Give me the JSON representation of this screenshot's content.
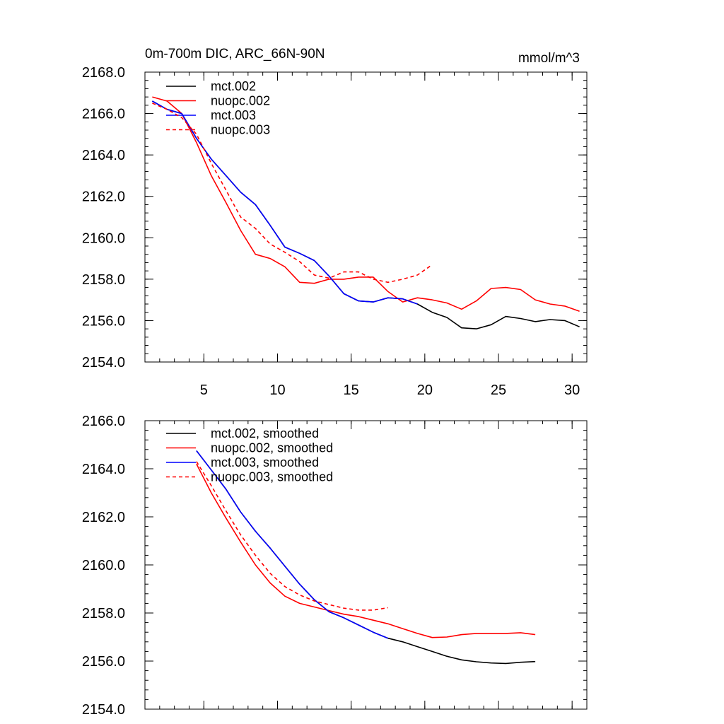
{
  "chart_data": [
    {
      "type": "line",
      "title": "0m-700m DIC, ARC_66N-90N",
      "units": "mmol/m^3",
      "xlabel": "",
      "ylabel": "",
      "xlim": [
        1,
        31
      ],
      "ylim": [
        2154.0,
        2168.0
      ],
      "xticks": [
        5,
        10,
        15,
        20,
        25,
        30
      ],
      "yticks": [
        "2154.0",
        "2156.0",
        "2158.0",
        "2160.0",
        "2162.0",
        "2164.0",
        "2166.0",
        "2168.0"
      ],
      "legend_position": "top-left",
      "series": [
        {
          "name": "mct.002",
          "color": "#000000",
          "dash": "solid",
          "x": [
            1.5,
            2.5,
            3.5,
            4.5,
            5.5,
            6.5,
            7.5,
            8.5,
            9.5,
            10.5,
            11.5,
            12.5,
            13.5,
            14.5,
            15.5,
            16.5,
            17.5,
            18.5,
            19.5,
            20.5,
            21.5,
            22.5,
            23.5,
            24.5,
            25.5,
            26.5,
            27.5,
            28.5,
            29.5,
            30.5
          ],
          "y": [
            2166.6,
            2166.2,
            2166.0,
            2164.8,
            2163.8,
            2163.0,
            2162.2,
            2161.6,
            2160.6,
            2159.55,
            2159.25,
            2158.9,
            2158.15,
            2157.3,
            2156.95,
            2156.9,
            2157.1,
            2157.05,
            2156.8,
            2156.4,
            2156.15,
            2155.65,
            2155.6,
            2155.8,
            2156.2,
            2156.1,
            2155.95,
            2156.05,
            2156.0,
            2155.7
          ]
        },
        {
          "name": "nuopc.002",
          "color": "#ff0000",
          "dash": "solid",
          "x": [
            1.5,
            2.5,
            3.5,
            4.5,
            5.5,
            6.5,
            7.5,
            8.5,
            9.5,
            10.5,
            11.5,
            12.5,
            13.5,
            14.5,
            15.5,
            16.5,
            17.5,
            18.5,
            19.5,
            20.5,
            21.5,
            22.5,
            23.5,
            24.5,
            25.5,
            26.5,
            27.5,
            28.5,
            29.5,
            30.5
          ],
          "y": [
            2166.8,
            2166.6,
            2166.0,
            2164.6,
            2163.0,
            2161.7,
            2160.35,
            2159.2,
            2159.0,
            2158.6,
            2157.85,
            2157.8,
            2158.0,
            2158.0,
            2158.1,
            2158.1,
            2157.4,
            2156.9,
            2157.1,
            2157.0,
            2156.85,
            2156.55,
            2156.95,
            2157.55,
            2157.6,
            2157.5,
            2157.0,
            2156.8,
            2156.7,
            2156.45
          ]
        },
        {
          "name": "mct.003",
          "color": "#0000ff",
          "dash": "solid",
          "x": [
            1.5,
            2.5,
            3.5,
            4.5,
            5.5,
            6.5,
            7.5,
            8.5,
            9.5,
            10.5,
            11.5,
            12.5,
            13.5,
            14.5,
            15.5,
            16.5,
            17.5,
            18.5,
            19.5
          ],
          "y": [
            2166.6,
            2166.2,
            2166.0,
            2164.8,
            2163.8,
            2163.0,
            2162.2,
            2161.6,
            2160.6,
            2159.55,
            2159.25,
            2158.9,
            2158.15,
            2157.3,
            2156.95,
            2156.9,
            2157.1,
            2157.05,
            2156.8
          ]
        },
        {
          "name": "nuopc.003",
          "color": "#ff0000",
          "dash": "dashed",
          "x": [
            1.5,
            2.5,
            3.5,
            4.5,
            5.5,
            6.5,
            7.5,
            8.5,
            9.5,
            10.5,
            11.5,
            12.5,
            13.5,
            14.5,
            15.5,
            16.5,
            17.5,
            18.5,
            19.5,
            20.5
          ],
          "y": [
            2166.5,
            2166.2,
            2165.8,
            2165.0,
            2163.6,
            2162.3,
            2161.0,
            2160.45,
            2159.7,
            2159.3,
            2158.85,
            2158.2,
            2158.05,
            2158.35,
            2158.35,
            2158.0,
            2157.85,
            2158.0,
            2158.2,
            2158.7
          ]
        }
      ]
    },
    {
      "type": "line",
      "title": "",
      "xlim": [
        1,
        31
      ],
      "ylim": [
        2154.0,
        2166.0
      ],
      "xticks": [
        5,
        10,
        15,
        20,
        25,
        30
      ],
      "yticks": [
        "2154.0",
        "2156.0",
        "2158.0",
        "2160.0",
        "2162.0",
        "2164.0",
        "2166.0"
      ],
      "legend_position": "top-left",
      "series": [
        {
          "name": "mct.002, smoothed",
          "color": "#000000",
          "dash": "solid",
          "x": [
            4.5,
            5.5,
            6.5,
            7.5,
            8.5,
            9.5,
            10.5,
            11.5,
            12.5,
            13.5,
            14.5,
            15.5,
            16.5,
            17.5,
            18.5,
            19.5,
            20.5,
            21.5,
            22.5,
            23.5,
            24.5,
            25.5,
            26.5,
            27.5
          ],
          "y": [
            2164.75,
            2163.95,
            2163.15,
            2162.2,
            2161.4,
            2160.7,
            2159.95,
            2159.2,
            2158.55,
            2158.05,
            2157.8,
            2157.5,
            2157.2,
            2156.95,
            2156.8,
            2156.6,
            2156.4,
            2156.2,
            2156.05,
            2155.97,
            2155.92,
            2155.9,
            2155.95,
            2155.98
          ]
        },
        {
          "name": "nuopc.002, smoothed",
          "color": "#ff0000",
          "dash": "solid",
          "x": [
            4.5,
            5.5,
            6.5,
            7.5,
            8.5,
            9.5,
            10.5,
            11.5,
            12.5,
            13.5,
            14.5,
            15.5,
            16.5,
            17.5,
            18.5,
            19.5,
            20.5,
            21.5,
            22.5,
            23.5,
            24.5,
            25.5,
            26.5,
            27.5
          ],
          "y": [
            2164.2,
            2163.0,
            2161.95,
            2160.95,
            2160.0,
            2159.25,
            2158.7,
            2158.4,
            2158.25,
            2158.1,
            2157.95,
            2157.85,
            2157.7,
            2157.55,
            2157.35,
            2157.15,
            2156.98,
            2157.0,
            2157.1,
            2157.15,
            2157.15,
            2157.15,
            2157.18,
            2157.1
          ]
        },
        {
          "name": "mct.003, smoothed",
          "color": "#0000ff",
          "dash": "solid",
          "x": [
            4.5,
            5.5,
            6.5,
            7.5,
            8.5,
            9.5,
            10.5,
            11.5,
            12.5,
            13.5,
            14.5,
            15.5,
            16.5,
            17.5
          ],
          "y": [
            2164.75,
            2163.95,
            2163.15,
            2162.2,
            2161.4,
            2160.7,
            2159.95,
            2159.2,
            2158.55,
            2158.05,
            2157.8,
            2157.5,
            2157.2,
            2156.95
          ]
        },
        {
          "name": "nuopc.003, smoothed",
          "color": "#ff0000",
          "dash": "dashed",
          "x": [
            4.5,
            5.5,
            6.5,
            7.5,
            8.5,
            9.5,
            10.5,
            11.5,
            12.5,
            13.5,
            14.5,
            15.5,
            16.5,
            17.5
          ],
          "y": [
            2164.3,
            2163.3,
            2162.25,
            2161.25,
            2160.4,
            2159.65,
            2159.1,
            2158.75,
            2158.5,
            2158.35,
            2158.2,
            2158.12,
            2158.12,
            2158.22
          ]
        }
      ]
    }
  ]
}
